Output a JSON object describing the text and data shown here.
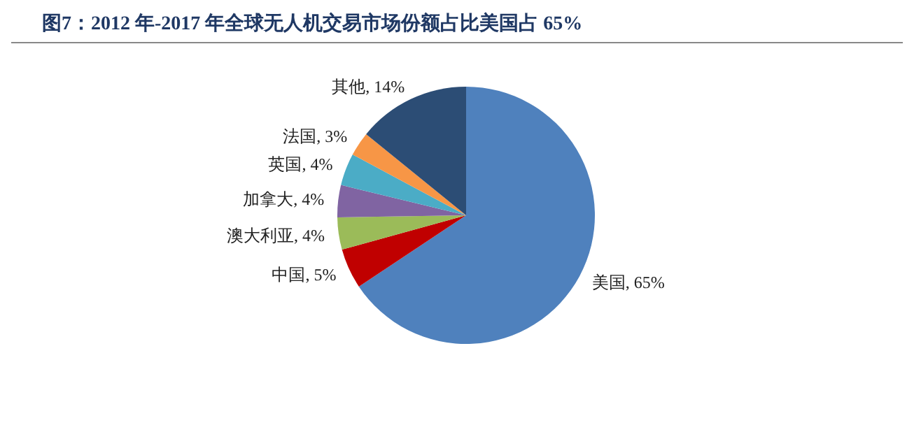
{
  "chart_data": {
    "type": "pie",
    "title": "图7：2012 年-2017 年全球无人机交易市场份额占比美国占 65%",
    "categories": [
      "美国",
      "中国",
      "澳大利亚",
      "加拿大",
      "英国",
      "法国",
      "其他"
    ],
    "values": [
      65,
      5,
      4,
      4,
      4,
      3,
      14
    ],
    "value_labels": [
      "65%",
      "5%",
      "4%",
      "4%",
      "4%",
      "3%",
      "14%"
    ],
    "colors": [
      "#4f81bd",
      "#c00000",
      "#9bbb59",
      "#8064a2",
      "#4bacc6",
      "#f79646",
      "#2c4d75"
    ],
    "legend": false
  }
}
